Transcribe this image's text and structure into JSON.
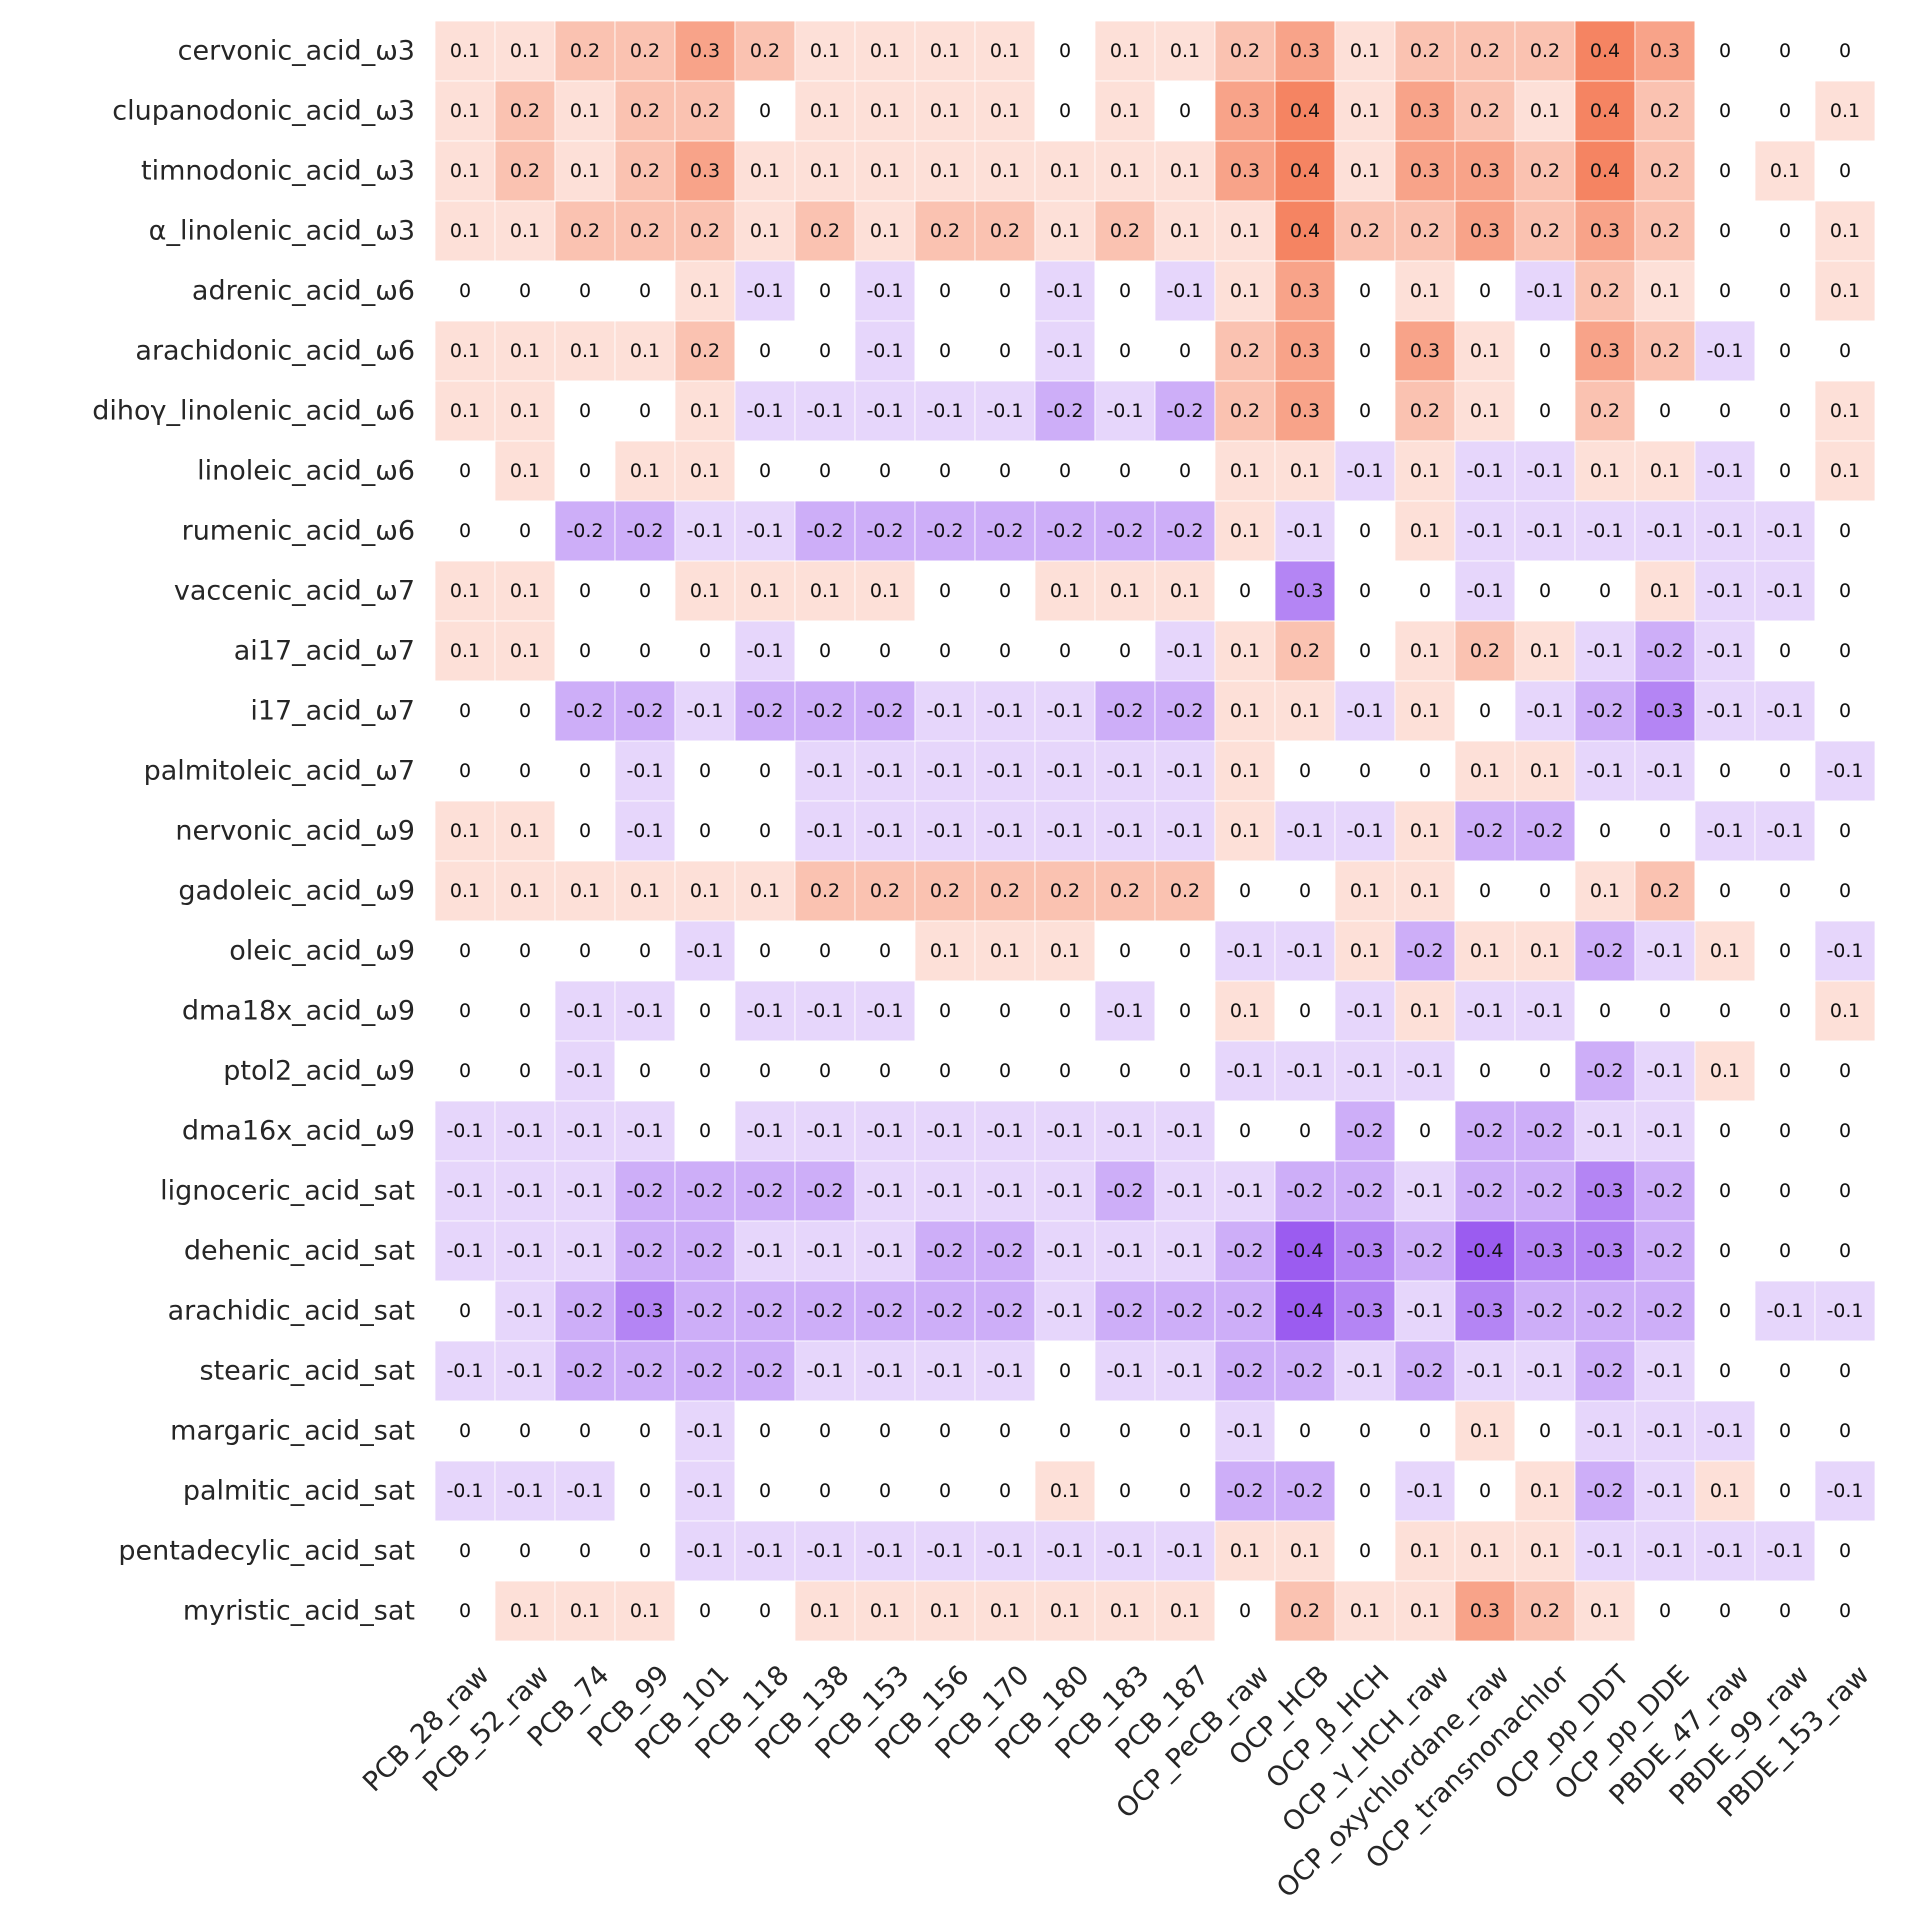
{
  "chart_data": {
    "type": "heatmap",
    "rows": [
      "cervonic_acid_ω3",
      "clupanodonic_acid_ω3",
      "timnodonic_acid_ω3",
      "α_linolenic_acid_ω3",
      "adrenic_acid_ω6",
      "arachidonic_acid_ω6",
      "dihoγ_linolenic_acid_ω6",
      "linoleic_acid_ω6",
      "rumenic_acid_ω6",
      "vaccenic_acid_ω7",
      "ai17_acid_ω7",
      "i17_acid_ω7",
      "palmitoleic_acid_ω7",
      "nervonic_acid_ω9",
      "gadoleic_acid_ω9",
      "oleic_acid_ω9",
      "dma18x_acid_ω9",
      "ptol2_acid_ω9",
      "dma16x_acid_ω9",
      "lignoceric_acid_sat",
      "dehenic_acid_sat",
      "arachidic_acid_sat",
      "stearic_acid_sat",
      "margaric_acid_sat",
      "palmitic_acid_sat",
      "pentadecylic_acid_sat",
      "myristic_acid_sat"
    ],
    "columns": [
      "PCB_28_raw",
      "PCB_52_raw",
      "PCB_74",
      "PCB_99",
      "PCB_101",
      "PCB_118",
      "PCB_138",
      "PCB_153",
      "PCB_156",
      "PCB_170",
      "PCB_180",
      "PCB_183",
      "PCB_187",
      "OCP_PeCB_raw",
      "OCP_HCB",
      "OCP_β_HCH",
      "OCP_γ_HCH_raw",
      "OCP_oxychlordane_raw",
      "OCP_transnonachlor",
      "OCP_pp_DDT",
      "OCP_pp_DDE",
      "PBDE_47_raw",
      "PBDE_99_raw",
      "PBDE_153_raw"
    ],
    "values": [
      [
        0.1,
        0.1,
        0.2,
        0.2,
        0.3,
        0.2,
        0.1,
        0.1,
        0.1,
        0.1,
        0,
        0.1,
        0.1,
        0.2,
        0.3,
        0.1,
        0.2,
        0.2,
        0.2,
        0.4,
        0.3,
        0,
        0,
        0
      ],
      [
        0.1,
        0.2,
        0.1,
        0.2,
        0.2,
        0,
        0.1,
        0.1,
        0.1,
        0.1,
        0,
        0.1,
        0,
        0.3,
        0.4,
        0.1,
        0.3,
        0.2,
        0.1,
        0.4,
        0.2,
        0,
        0,
        0.1
      ],
      [
        0.1,
        0.2,
        0.1,
        0.2,
        0.3,
        0.1,
        0.1,
        0.1,
        0.1,
        0.1,
        0.1,
        0.1,
        0.1,
        0.3,
        0.4,
        0.1,
        0.3,
        0.3,
        0.2,
        0.4,
        0.2,
        0,
        0.1,
        0
      ],
      [
        0.1,
        0.1,
        0.2,
        0.2,
        0.2,
        0.1,
        0.2,
        0.1,
        0.2,
        0.2,
        0.1,
        0.2,
        0.1,
        0.1,
        0.4,
        0.2,
        0.2,
        0.3,
        0.2,
        0.3,
        0.2,
        0,
        0,
        0.1
      ],
      [
        0,
        0,
        0,
        0,
        0.1,
        -0.1,
        0,
        -0.1,
        0,
        0,
        -0.1,
        0,
        -0.1,
        0.1,
        0.3,
        0,
        0.1,
        0,
        -0.1,
        0.2,
        0.1,
        0,
        0,
        0.1
      ],
      [
        0.1,
        0.1,
        0.1,
        0.1,
        0.2,
        0,
        0,
        -0.1,
        0,
        0,
        -0.1,
        0,
        0,
        0.2,
        0.3,
        0,
        0.3,
        0.1,
        0,
        0.3,
        0.2,
        -0.1,
        0,
        0
      ],
      [
        0.1,
        0.1,
        0,
        0,
        0.1,
        -0.1,
        -0.1,
        -0.1,
        -0.1,
        -0.1,
        -0.2,
        -0.1,
        -0.2,
        0.2,
        0.3,
        0,
        0.2,
        0.1,
        0,
        0.2,
        0,
        0,
        0,
        0.1
      ],
      [
        0,
        0.1,
        0,
        0.1,
        0.1,
        0,
        0,
        0,
        0,
        0,
        0,
        0,
        0,
        0.1,
        0.1,
        -0.1,
        0.1,
        -0.1,
        -0.1,
        0.1,
        0.1,
        -0.1,
        0,
        0.1
      ],
      [
        0,
        0,
        -0.2,
        -0.2,
        -0.1,
        -0.1,
        -0.2,
        -0.2,
        -0.2,
        -0.2,
        -0.2,
        -0.2,
        -0.2,
        0.1,
        -0.1,
        0,
        0.1,
        -0.1,
        -0.1,
        -0.1,
        -0.1,
        -0.1,
        -0.1,
        0
      ],
      [
        0.1,
        0.1,
        0,
        0,
        0.1,
        0.1,
        0.1,
        0.1,
        0,
        0,
        0.1,
        0.1,
        0.1,
        0,
        -0.3,
        0,
        0,
        -0.1,
        0,
        0,
        0.1,
        -0.1,
        -0.1,
        0
      ],
      [
        0.1,
        0.1,
        0,
        0,
        0,
        -0.1,
        0,
        0,
        0,
        0,
        0,
        0,
        -0.1,
        0.1,
        0.2,
        0,
        0.1,
        0.2,
        0.1,
        -0.1,
        -0.2,
        -0.1,
        0,
        0
      ],
      [
        0,
        0,
        -0.2,
        -0.2,
        -0.1,
        -0.2,
        -0.2,
        -0.2,
        -0.1,
        -0.1,
        -0.1,
        -0.2,
        -0.2,
        0.1,
        0.1,
        -0.1,
        0.1,
        0,
        -0.1,
        -0.2,
        -0.3,
        -0.1,
        -0.1,
        0
      ],
      [
        0,
        0,
        0,
        -0.1,
        0,
        0,
        -0.1,
        -0.1,
        -0.1,
        -0.1,
        -0.1,
        -0.1,
        -0.1,
        0.1,
        0,
        0,
        0,
        0.1,
        0.1,
        -0.1,
        -0.1,
        0,
        0,
        -0.1
      ],
      [
        0.1,
        0.1,
        0,
        -0.1,
        0,
        0,
        -0.1,
        -0.1,
        -0.1,
        -0.1,
        -0.1,
        -0.1,
        -0.1,
        0.1,
        -0.1,
        -0.1,
        0.1,
        -0.2,
        -0.2,
        0,
        0,
        -0.1,
        -0.1,
        0
      ],
      [
        0.1,
        0.1,
        0.1,
        0.1,
        0.1,
        0.1,
        0.2,
        0.2,
        0.2,
        0.2,
        0.2,
        0.2,
        0.2,
        0,
        0,
        0.1,
        0.1,
        0,
        0,
        0.1,
        0.2,
        0,
        0,
        0
      ],
      [
        0,
        0,
        0,
        0,
        -0.1,
        0,
        0,
        0,
        0.1,
        0.1,
        0.1,
        0,
        0,
        -0.1,
        -0.1,
        0.1,
        -0.2,
        0.1,
        0.1,
        -0.2,
        -0.1,
        0.1,
        0,
        -0.1
      ],
      [
        0,
        0,
        -0.1,
        -0.1,
        0,
        -0.1,
        -0.1,
        -0.1,
        0,
        0,
        0,
        -0.1,
        0,
        0.1,
        0,
        -0.1,
        0.1,
        -0.1,
        -0.1,
        0,
        0,
        0,
        0,
        0.1
      ],
      [
        0,
        0,
        -0.1,
        0,
        0,
        0,
        0,
        0,
        0,
        0,
        0,
        0,
        0,
        -0.1,
        -0.1,
        -0.1,
        -0.1,
        0,
        0,
        -0.2,
        -0.1,
        0.1,
        0,
        0
      ],
      [
        -0.1,
        -0.1,
        -0.1,
        -0.1,
        0,
        -0.1,
        -0.1,
        -0.1,
        -0.1,
        -0.1,
        -0.1,
        -0.1,
        -0.1,
        0,
        0,
        -0.2,
        0,
        -0.2,
        -0.2,
        -0.1,
        -0.1,
        0,
        0,
        0
      ],
      [
        -0.1,
        -0.1,
        -0.1,
        -0.2,
        -0.2,
        -0.2,
        -0.2,
        -0.1,
        -0.1,
        -0.1,
        -0.1,
        -0.2,
        -0.1,
        -0.1,
        -0.2,
        -0.2,
        -0.1,
        -0.2,
        -0.2,
        -0.3,
        -0.2,
        0,
        0,
        0
      ],
      [
        -0.1,
        -0.1,
        -0.1,
        -0.2,
        -0.2,
        -0.1,
        -0.1,
        -0.1,
        -0.2,
        -0.2,
        -0.1,
        -0.1,
        -0.1,
        -0.2,
        -0.4,
        -0.3,
        -0.2,
        -0.4,
        -0.3,
        -0.3,
        -0.2,
        0,
        0,
        0
      ],
      [
        0,
        -0.1,
        -0.2,
        -0.3,
        -0.2,
        -0.2,
        -0.2,
        -0.2,
        -0.2,
        -0.2,
        -0.1,
        -0.2,
        -0.2,
        -0.2,
        -0.4,
        -0.3,
        -0.1,
        -0.3,
        -0.2,
        -0.2,
        -0.2,
        0,
        -0.1,
        -0.1
      ],
      [
        -0.1,
        -0.1,
        -0.2,
        -0.2,
        -0.2,
        -0.2,
        -0.1,
        -0.1,
        -0.1,
        -0.1,
        0,
        -0.1,
        -0.1,
        -0.2,
        -0.2,
        -0.1,
        -0.2,
        -0.1,
        -0.1,
        -0.2,
        -0.1,
        0,
        0,
        0
      ],
      [
        0,
        0,
        0,
        0,
        -0.1,
        0,
        0,
        0,
        0,
        0,
        0,
        0,
        0,
        -0.1,
        0,
        0,
        0,
        0.1,
        0,
        -0.1,
        -0.1,
        -0.1,
        0,
        0
      ],
      [
        -0.1,
        -0.1,
        -0.1,
        0,
        -0.1,
        0,
        0,
        0,
        0,
        0,
        0.1,
        0,
        0,
        -0.2,
        -0.2,
        0,
        -0.1,
        0,
        0.1,
        -0.2,
        -0.1,
        0.1,
        0,
        -0.1
      ],
      [
        0,
        0,
        0,
        0,
        -0.1,
        -0.1,
        -0.1,
        -0.1,
        -0.1,
        -0.1,
        -0.1,
        -0.1,
        -0.1,
        0.1,
        0.1,
        0,
        0.1,
        0.1,
        0.1,
        -0.1,
        -0.1,
        -0.1,
        -0.1,
        0
      ],
      [
        0,
        0.1,
        0.1,
        0.1,
        0,
        0,
        0.1,
        0.1,
        0.1,
        0.1,
        0.1,
        0.1,
        0.1,
        0,
        0.2,
        0.1,
        0.1,
        0.3,
        0.2,
        0.1,
        0,
        0,
        0,
        0
      ]
    ],
    "value_range": [
      -0.4,
      0.4
    ],
    "colors": {
      "negative": "#9b5cf0",
      "zero": "#ffffff",
      "positive": "#f58462"
    },
    "annotated": true,
    "grid": false,
    "legend": "none"
  }
}
